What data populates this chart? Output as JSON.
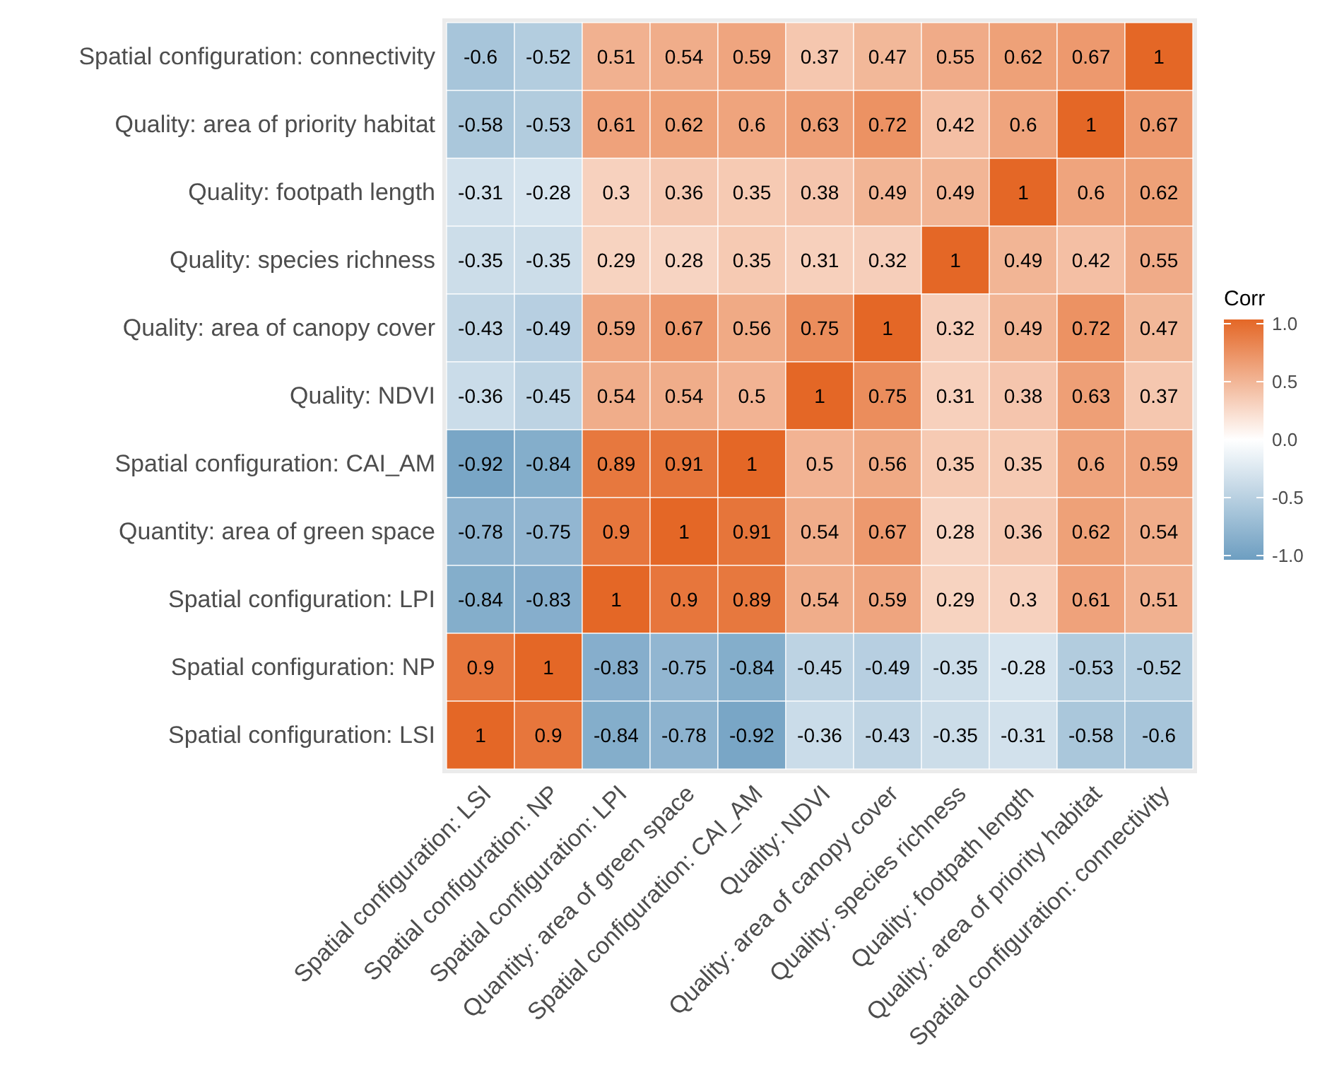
{
  "chart_data": {
    "type": "heatmap",
    "categories": [
      "Spatial configuration: LSI",
      "Spatial configuration: NP",
      "Spatial configuration: LPI",
      "Quantity: area of green space",
      "Spatial configuration: CAI_AM",
      "Quality: NDVI",
      "Quality: area of canopy cover",
      "Quality: species richness",
      "Quality: footpath length",
      "Quality: area of priority habitat",
      "Spatial configuration: connectivity"
    ],
    "y_categories": [
      "Spatial configuration: connectivity",
      "Quality: area of priority habitat",
      "Quality: footpath length",
      "Quality: species richness",
      "Quality: area of canopy cover",
      "Quality: NDVI",
      "Spatial configuration: CAI_AM",
      "Quantity: area of green space",
      "Spatial configuration: LPI",
      "Spatial configuration: NP",
      "Spatial configuration: LSI"
    ],
    "cells": [
      [
        -0.6,
        -0.52,
        0.51,
        0.54,
        0.59,
        0.37,
        0.47,
        0.55,
        0.62,
        0.67,
        1
      ],
      [
        -0.58,
        -0.53,
        0.61,
        0.62,
        0.6,
        0.63,
        0.72,
        0.42,
        0.6,
        1,
        0.67
      ],
      [
        -0.31,
        -0.28,
        0.3,
        0.36,
        0.35,
        0.38,
        0.49,
        0.49,
        1,
        0.6,
        0.62
      ],
      [
        -0.35,
        -0.35,
        0.29,
        0.28,
        0.35,
        0.31,
        0.32,
        1,
        0.49,
        0.42,
        0.55
      ],
      [
        -0.43,
        -0.49,
        0.59,
        0.67,
        0.56,
        0.75,
        1,
        0.32,
        0.49,
        0.72,
        0.47
      ],
      [
        -0.36,
        -0.45,
        0.54,
        0.54,
        0.5,
        1,
        0.75,
        0.31,
        0.38,
        0.63,
        0.37
      ],
      [
        -0.92,
        -0.84,
        0.89,
        0.91,
        1,
        0.5,
        0.56,
        0.35,
        0.35,
        0.6,
        0.59
      ],
      [
        -0.78,
        -0.75,
        0.9,
        1,
        0.91,
        0.54,
        0.67,
        0.28,
        0.36,
        0.62,
        0.54
      ],
      [
        -0.84,
        -0.83,
        1,
        0.9,
        0.89,
        0.54,
        0.59,
        0.29,
        0.3,
        0.61,
        0.51
      ],
      [
        0.9,
        1,
        -0.83,
        -0.75,
        -0.84,
        -0.45,
        -0.49,
        -0.35,
        -0.28,
        -0.53,
        -0.52
      ],
      [
        1,
        0.9,
        -0.84,
        -0.78,
        -0.92,
        -0.36,
        -0.43,
        -0.35,
        -0.31,
        -0.58,
        -0.6
      ]
    ],
    "colors": [
      "#6d9ec1",
      "#ffffff",
      "#e46726"
    ],
    "clim": [
      -1,
      1
    ],
    "cticks": [
      {
        "value": -1,
        "label": "-1.0"
      },
      {
        "value": -0.5,
        "label": "-0.5"
      },
      {
        "value": 0,
        "label": "0.0"
      },
      {
        "value": 0.5,
        "label": "0.5"
      },
      {
        "value": 1,
        "label": "1.0"
      }
    ],
    "legend_title": "Corr",
    "data_labels": true
  }
}
